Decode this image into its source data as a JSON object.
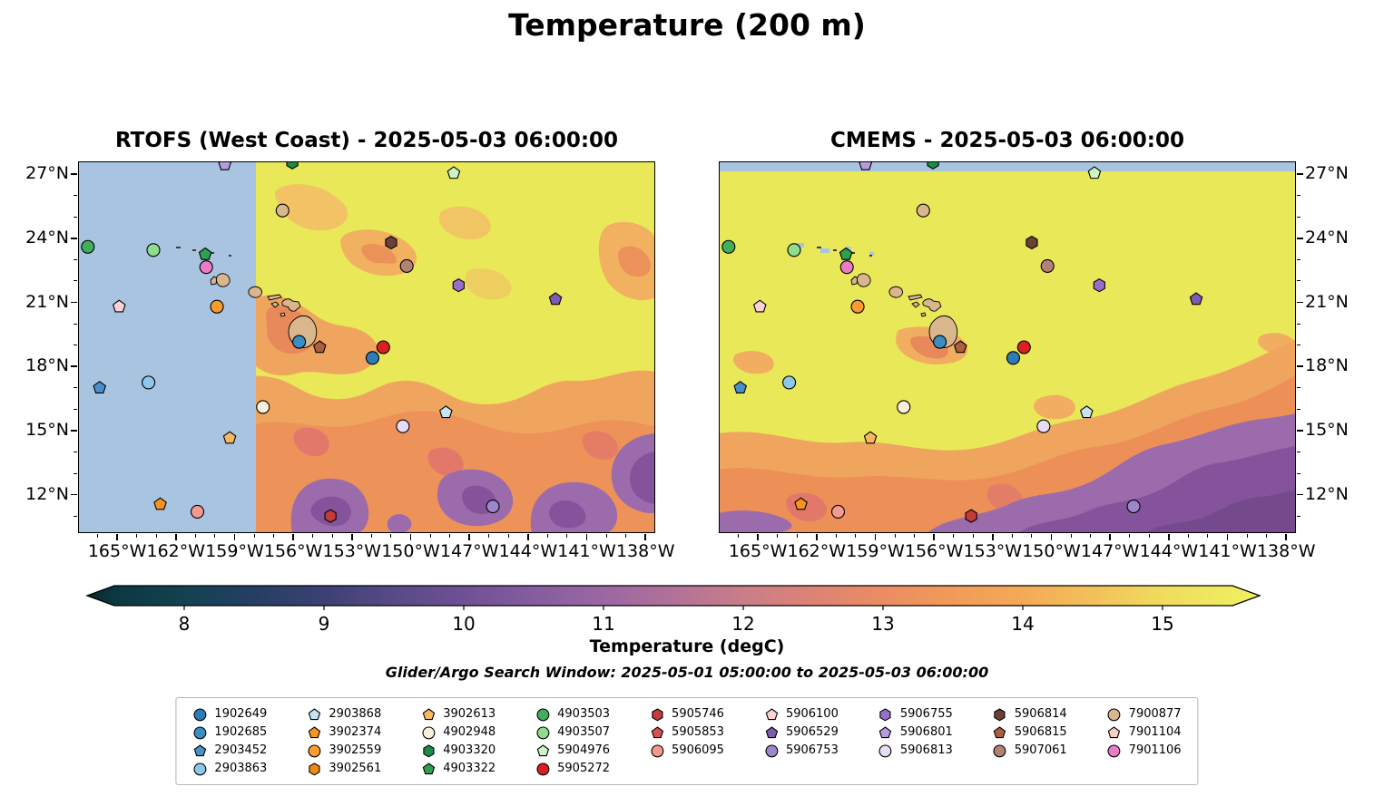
{
  "figure_title": "Temperature (200 m)",
  "panels": [
    {
      "id": "rtofs",
      "title": "RTOFS (West Coast) - 2025-05-03 06:00:00",
      "nodata_note": "western portion masked (no model data)"
    },
    {
      "id": "cmems",
      "title": "CMEMS - 2025-05-03 06:00:00",
      "nodata_note": "thin strip along northern edge masked"
    }
  ],
  "axes": {
    "lon_range": [
      -167.0,
      -137.5
    ],
    "lat_range": [
      10.2,
      27.6
    ],
    "lon_ticks": [
      {
        "value": -165,
        "label": "165°W"
      },
      {
        "value": -162,
        "label": "162°W"
      },
      {
        "value": -159,
        "label": "159°W"
      },
      {
        "value": -156,
        "label": "156°W"
      },
      {
        "value": -153,
        "label": "153°W"
      },
      {
        "value": -150,
        "label": "150°W"
      },
      {
        "value": -147,
        "label": "147°W"
      },
      {
        "value": -144,
        "label": "144°W"
      },
      {
        "value": -141,
        "label": "141°W"
      },
      {
        "value": -138,
        "label": "138°W"
      }
    ],
    "lat_ticks": [
      {
        "value": 27,
        "label": "27°N"
      },
      {
        "value": 24,
        "label": "24°N"
      },
      {
        "value": 21,
        "label": "21°N"
      },
      {
        "value": 18,
        "label": "18°N"
      },
      {
        "value": 15,
        "label": "15°N"
      },
      {
        "value": 12,
        "label": "12°N"
      }
    ]
  },
  "colorbar": {
    "label": "Temperature (degC)",
    "vmin": 7.5,
    "vmax": 15.5,
    "ticks": [
      8,
      9,
      10,
      11,
      12,
      13,
      14,
      15
    ]
  },
  "search_window_label": "Glider/Argo Search Window: 2025-05-01 05:00:00 to 2025-05-03 06:00:00",
  "colors": {
    "nodata": "#a9c4e1",
    "land": "#d9b68c",
    "field_yellow": "#e9e858",
    "field_orange": "#f0a55e",
    "field_purple": "#9c6bac"
  },
  "floats": [
    {
      "id": "1902649",
      "shape": "circle",
      "color": "#2d7cb8",
      "lon": -151.95,
      "lat": 18.4
    },
    {
      "id": "1902685",
      "shape": "circle",
      "color": "#3a8ec4",
      "lon": -155.7,
      "lat": 19.15
    },
    {
      "id": "2903452",
      "shape": "pentagon",
      "color": "#4a90c8",
      "lon": -165.9,
      "lat": 17.0
    },
    {
      "id": "2903863",
      "shape": "circle",
      "color": "#8ec8e8",
      "lon": -163.4,
      "lat": 17.25
    },
    {
      "id": "2903868",
      "shape": "pentagon",
      "color": "#c6e4f4",
      "lon": -148.2,
      "lat": 15.85
    },
    {
      "id": "3902374",
      "shape": "pentagon",
      "color": "#f79420",
      "lon": -162.8,
      "lat": 11.55
    },
    {
      "id": "3902559",
      "shape": "circle",
      "color": "#f99b2e",
      "lon": -159.9,
      "lat": 20.8
    },
    {
      "id": "3902561",
      "shape": "hexagon",
      "color": "#ef8b10",
      "lon": null,
      "lat": null
    },
    {
      "id": "3902613",
      "shape": "pentagon",
      "color": "#f9b760",
      "lon": -159.25,
      "lat": 14.65
    },
    {
      "id": "4902948",
      "shape": "circle",
      "color": "#fbeeda",
      "lon": -157.55,
      "lat": 16.1
    },
    {
      "id": "4903320",
      "shape": "hexagon",
      "color": "#1f8b45",
      "lon": -156.05,
      "lat": 27.55
    },
    {
      "id": "4903322",
      "shape": "pentagon",
      "color": "#2fa04e",
      "lon": -160.5,
      "lat": 23.25
    },
    {
      "id": "4903503",
      "shape": "circle",
      "color": "#3fae5d",
      "lon": -166.5,
      "lat": 23.6
    },
    {
      "id": "4903507",
      "shape": "circle",
      "color": "#90dc8e",
      "lon": -163.15,
      "lat": 23.45
    },
    {
      "id": "5904976",
      "shape": "pentagon",
      "color": "#ccf4c4",
      "lon": -147.8,
      "lat": 27.05
    },
    {
      "id": "5905272",
      "shape": "circle",
      "color": "#d92122",
      "lon": -151.4,
      "lat": 18.9
    },
    {
      "id": "5905746",
      "shape": "hexagon",
      "color": "#c23c3c",
      "lon": -154.1,
      "lat": 11.0
    },
    {
      "id": "5905853",
      "shape": "pentagon",
      "color": "#d85050",
      "lon": null,
      "lat": null
    },
    {
      "id": "5906095",
      "shape": "circle",
      "color": "#f49890",
      "lon": -160.9,
      "lat": 11.2
    },
    {
      "id": "5906100",
      "shape": "pentagon",
      "color": "#fbd2d6",
      "lon": -164.9,
      "lat": 20.8
    },
    {
      "id": "5906529",
      "shape": "pentagon",
      "color": "#7a5cb0",
      "lon": -142.6,
      "lat": 21.15
    },
    {
      "id": "5906753",
      "shape": "circle",
      "color": "#9b87ca",
      "lon": -145.8,
      "lat": 11.45
    },
    {
      "id": "5906755",
      "shape": "hexagon",
      "color": "#9670c8",
      "lon": -147.55,
      "lat": 21.8
    },
    {
      "id": "5906801",
      "shape": "pentagon",
      "color": "#b89bde",
      "lon": -159.5,
      "lat": 27.45
    },
    {
      "id": "5906813",
      "shape": "circle",
      "color": "#e6dcf6",
      "lon": -150.4,
      "lat": 15.2
    },
    {
      "id": "5906814",
      "shape": "hexagon",
      "color": "#6b4136",
      "lon": -151.0,
      "lat": 23.8
    },
    {
      "id": "5906815",
      "shape": "pentagon",
      "color": "#ab603f",
      "lon": -154.65,
      "lat": 18.9
    },
    {
      "id": "5907061",
      "shape": "circle",
      "color": "#b28276",
      "lon": -150.2,
      "lat": 22.7
    },
    {
      "id": "7900877",
      "shape": "circle",
      "color": "#dab68e",
      "lon": -156.55,
      "lat": 25.3
    },
    {
      "id": "7901104",
      "shape": "pentagon",
      "color": "#f8d0c0",
      "lon": null,
      "lat": null
    },
    {
      "id": "7901106",
      "shape": "circle",
      "color": "#e87cc8",
      "lon": -160.45,
      "lat": 22.65
    }
  ],
  "chart_data": [
    {
      "type": "heatmap",
      "title": "RTOFS (West Coast) - 2025-05-03 06:00:00",
      "x_ticks": [
        "165°W",
        "162°W",
        "159°W",
        "156°W",
        "153°W",
        "150°W",
        "147°W",
        "144°W",
        "141°W",
        "138°W"
      ],
      "y_ticks": [
        "27°N",
        "24°N",
        "21°N",
        "18°N",
        "15°N",
        "12°N"
      ],
      "value_label": "Temperature (degC)",
      "value_range": [
        7.5,
        15.5
      ],
      "colorbar_ticks": [
        8,
        9,
        10,
        11,
        12,
        13,
        14,
        15
      ],
      "pattern": "warm (~15 degC, yellow) north of ~16°N grading to cooler (~10-12 degC, orange to purple) south of ~15°N; western area west of ~158°W masked light blue (outside model domain); Hawaiian Islands drawn as land"
    },
    {
      "type": "heatmap",
      "title": "CMEMS - 2025-05-03 06:00:00",
      "x_ticks": [
        "165°W",
        "162°W",
        "159°W",
        "156°W",
        "153°W",
        "150°W",
        "147°W",
        "144°W",
        "141°W",
        "138°W"
      ],
      "y_ticks": [
        "27°N",
        "24°N",
        "21°N",
        "18°N",
        "15°N",
        "12°N"
      ],
      "value_label": "Temperature (degC)",
      "value_range": [
        7.5,
        15.5
      ],
      "colorbar_ticks": [
        8,
        9,
        10,
        11,
        12,
        13,
        14,
        15
      ],
      "pattern": "warm (~15 degC, yellow) over most of domain; cooler orange-to-purple (~10-12 degC) band across the south, deepest purple in the southeast; thin masked light-blue strip along the northern edge"
    },
    {
      "type": "scatter",
      "name": "Glider/Argo float positions",
      "points_from": "floats",
      "note": "each float plotted on both panels with marker shape/color given in floats[]"
    }
  ]
}
